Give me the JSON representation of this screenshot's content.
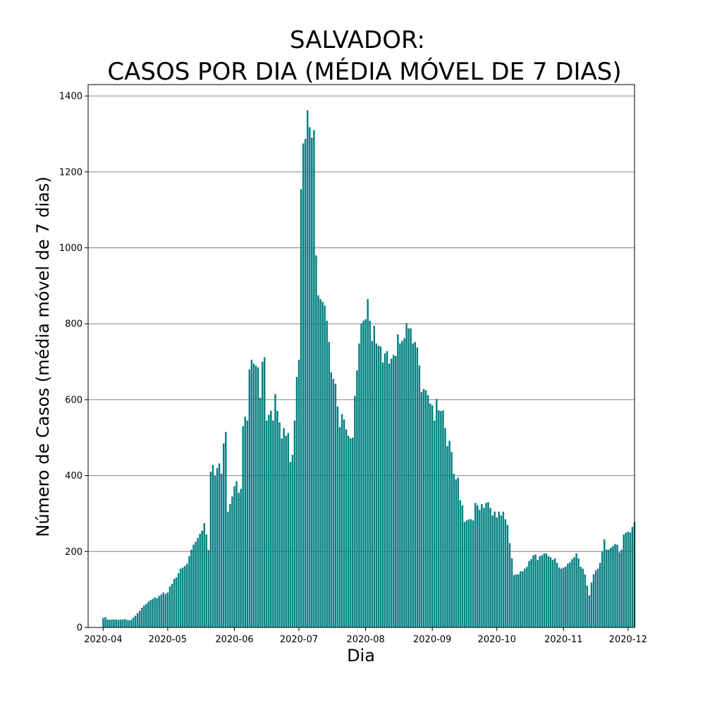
{
  "chart_data": {
    "type": "bar",
    "title_lines": [
      "SALVADOR:",
      "CASOS POR DIA (MÉDIA MÓVEL DE 7 DIAS)"
    ],
    "xlabel": "Dia",
    "ylabel": "Número de Casos (média móvel de 7 dias)",
    "x_start": "2020-04-01",
    "xlim": [
      "2020-03-25",
      "2020-12-04"
    ],
    "ylim": [
      0,
      1430
    ],
    "x_ticks": [
      "2020-04",
      "2020-05",
      "2020-06",
      "2020-07",
      "2020-08",
      "2020-09",
      "2020-10",
      "2020-11",
      "2020-12"
    ],
    "y_ticks": [
      0,
      200,
      400,
      600,
      800,
      1000,
      1200,
      1400
    ],
    "grid": "y",
    "bar_color": "#008080",
    "values": [
      25,
      27,
      21,
      20,
      21,
      21,
      21,
      20,
      21,
      21,
      22,
      20,
      19,
      20,
      26,
      31,
      38,
      44,
      52,
      58,
      62,
      68,
      72,
      75,
      79,
      77,
      83,
      87,
      92,
      88,
      92,
      108,
      115,
      128,
      132,
      143,
      155,
      158,
      162,
      168,
      188,
      205,
      218,
      226,
      236,
      247,
      255,
      275,
      245,
      204,
      410,
      428,
      400,
      420,
      432,
      405,
      485,
      515,
      305,
      325,
      345,
      372,
      385,
      355,
      365,
      530,
      555,
      545,
      680,
      705,
      695,
      690,
      685,
      605,
      700,
      712,
      545,
      560,
      571,
      545,
      615,
      570,
      540,
      498,
      525,
      505,
      512,
      436,
      455,
      545,
      660,
      705,
      1155,
      1275,
      1287,
      1362,
      1318,
      1290,
      1310,
      980,
      875,
      865,
      858,
      848,
      808,
      752,
      672,
      655,
      642,
      582,
      528,
      562,
      548,
      522,
      505,
      498,
      500,
      610,
      677,
      748,
      800,
      808,
      812,
      865,
      808,
      755,
      795,
      748,
      742,
      740,
      698,
      722,
      728,
      695,
      708,
      718,
      715,
      772,
      748,
      755,
      762,
      802,
      788,
      788,
      748,
      752,
      738,
      690,
      620,
      628,
      625,
      612,
      590,
      585,
      545,
      602,
      572,
      570,
      572,
      525,
      478,
      492,
      462,
      405,
      390,
      395,
      335,
      322,
      278,
      282,
      285,
      285,
      282,
      328,
      322,
      310,
      325,
      315,
      328,
      330,
      315,
      295,
      305,
      290,
      305,
      295,
      305,
      285,
      270,
      222,
      182,
      138,
      140,
      140,
      148,
      148,
      155,
      160,
      175,
      180,
      190,
      192,
      178,
      188,
      190,
      195,
      195,
      188,
      185,
      178,
      182,
      170,
      158,
      155,
      158,
      160,
      168,
      172,
      180,
      185,
      195,
      182,
      160,
      155,
      140,
      110,
      85,
      118,
      140,
      150,
      155,
      170,
      200,
      232,
      205,
      205,
      210,
      215,
      220,
      218,
      198,
      205,
      245,
      250,
      252,
      250,
      265,
      278
    ]
  }
}
